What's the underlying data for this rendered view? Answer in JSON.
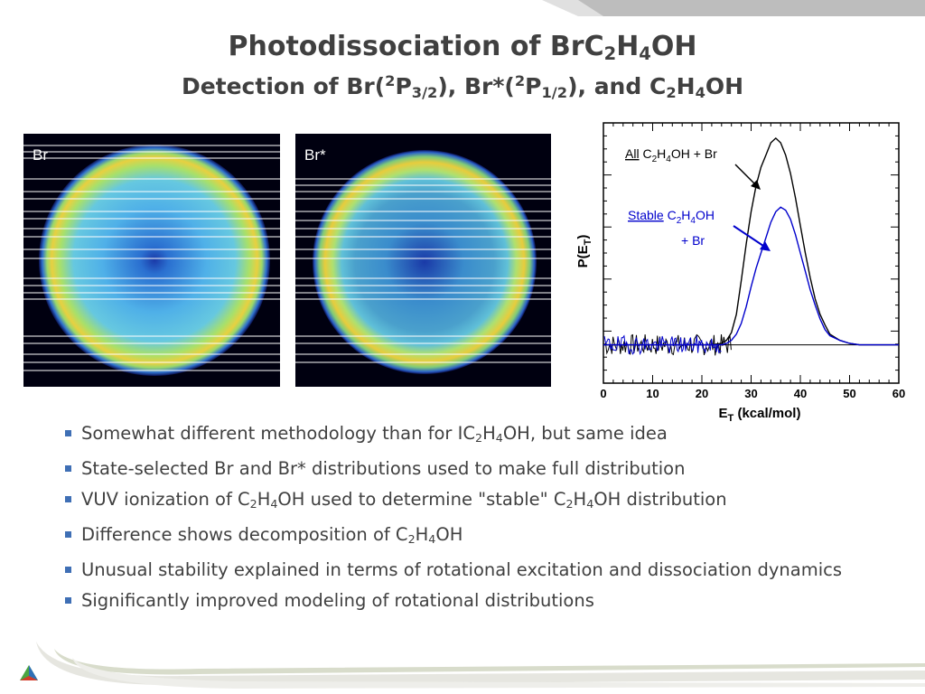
{
  "title": {
    "main_prefix": "Photodissociation of  BrC",
    "main_sub1": "2",
    "main_mid": "H",
    "main_sub2": "4",
    "main_suffix": "OH",
    "sub_a": "Detection of Br(",
    "sub_sup1": "2",
    "sub_b": "P",
    "sub_sub1": "3/2",
    "sub_c": "), Br*(",
    "sub_sup2": "2",
    "sub_d": "P",
    "sub_sub2": "1/2",
    "sub_e": "), and C",
    "sub_sub3": "2",
    "sub_f": "H",
    "sub_sub4": "4",
    "sub_g": "OH"
  },
  "images": {
    "left_label": "Br",
    "right_label": "Br*"
  },
  "chart_data": {
    "type": "line",
    "xlabel_main": "E",
    "xlabel_sub": "T",
    "xlabel_rest": " (kcal/mol)",
    "ylabel_main": "P(E",
    "ylabel_sub": "T",
    "ylabel_rest": ")",
    "xlim": [
      0,
      60
    ],
    "ylim": [
      -0.25,
      1.45
    ],
    "x_ticks": [
      "0",
      "10",
      "20",
      "30",
      "40",
      "50",
      "60"
    ],
    "series": [
      {
        "color": "#000000",
        "x": [
          0,
          2,
          4,
          6,
          8,
          10,
          12,
          14,
          16,
          18,
          20,
          22,
          24,
          25,
          26,
          27,
          28,
          29,
          30,
          31,
          32,
          33,
          34,
          35,
          36,
          37,
          38,
          39,
          40,
          41,
          42,
          43,
          44,
          45,
          46,
          48,
          50,
          52,
          54,
          56,
          58,
          60
        ],
        "y": [
          0,
          0,
          0,
          0,
          0,
          0,
          0,
          0,
          0,
          0,
          0,
          0,
          0.01,
          0.03,
          0.08,
          0.2,
          0.42,
          0.66,
          0.87,
          1.04,
          1.16,
          1.24,
          1.32,
          1.35,
          1.32,
          1.24,
          1.12,
          0.96,
          0.78,
          0.6,
          0.44,
          0.3,
          0.2,
          0.13,
          0.07,
          0.03,
          0.01,
          0,
          0,
          0,
          0,
          0
        ]
      },
      {
        "color": "#0000cc",
        "x": [
          0,
          2,
          4,
          6,
          8,
          10,
          12,
          14,
          16,
          18,
          20,
          22,
          24,
          25,
          26,
          27,
          28,
          29,
          30,
          31,
          32,
          33,
          34,
          35,
          36,
          37,
          38,
          39,
          40,
          41,
          42,
          43,
          44,
          45,
          46,
          48,
          50,
          52,
          54,
          56,
          58,
          60
        ],
        "y": [
          0,
          0,
          0,
          0,
          0,
          0,
          0,
          0,
          0,
          0,
          0,
          0,
          0,
          0.01,
          0.03,
          0.07,
          0.14,
          0.25,
          0.38,
          0.5,
          0.6,
          0.7,
          0.8,
          0.87,
          0.9,
          0.88,
          0.82,
          0.72,
          0.6,
          0.48,
          0.36,
          0.26,
          0.17,
          0.1,
          0.06,
          0.03,
          0.01,
          0,
          0,
          0,
          0,
          0
        ]
      }
    ],
    "annotations": {
      "all_underlined": "All",
      "all_a": " C",
      "all_s1": "2",
      "all_b": "H",
      "all_s2": "4",
      "all_c": "OH + Br",
      "stable_underlined": "Stable",
      "stable_a": " C",
      "stable_s1": "2",
      "stable_b": "H",
      "stable_s2": "4",
      "stable_c": "OH",
      "stable_line2": "+ Br"
    }
  },
  "bullets": [
    {
      "a": "Somewhat different methodology than for IC",
      "s1": "2",
      "b": "H",
      "s2": "4",
      "c": "OH, but same idea"
    },
    {
      "a": "State-selected Br and Br* distributions used to make full distribution"
    },
    {
      "a": "VUV ionization of C",
      "s1": "2",
      "b": "H",
      "s2": "4",
      "c": "OH used to determine \"stable\" C",
      "s3": "2",
      "d": "H",
      "s4": "4",
      "e": "OH distribution"
    },
    {
      "a": "Difference shows decomposition of C",
      "s1": "2",
      "b": "H",
      "s2": "4",
      "c": "OH"
    },
    {
      "a": "Unusual stability explained in terms of rotational excitation and dissociation dynamics"
    },
    {
      "a": "Significantly improved modeling of rotational distributions"
    }
  ]
}
